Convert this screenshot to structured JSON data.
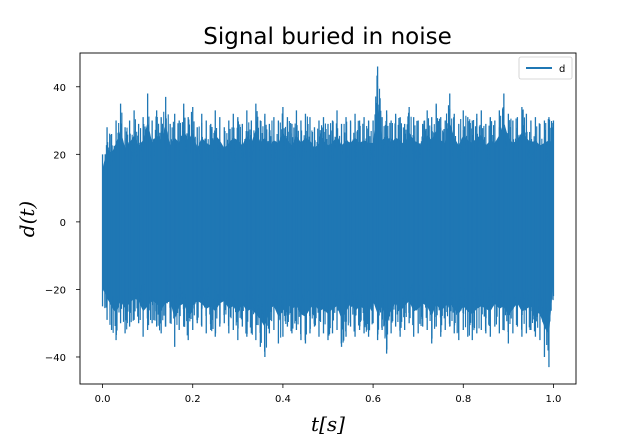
{
  "chart_data": {
    "type": "line",
    "title": "Signal buried in noise",
    "xlabel": "t[s]",
    "ylabel": "d(t)",
    "xlim": [
      -0.05,
      1.05
    ],
    "ylim": [
      -48,
      50
    ],
    "x_ticks": [
      0.0,
      0.2,
      0.4,
      0.6,
      0.8,
      1.0
    ],
    "x_tick_labels": [
      "0.0",
      "0.2",
      "0.4",
      "0.6",
      "0.8",
      "1.0"
    ],
    "y_ticks": [
      -40,
      -20,
      0,
      20,
      40
    ],
    "y_tick_labels": [
      "−40",
      "−20",
      "0",
      "20",
      "40"
    ],
    "grid": false,
    "legend": {
      "position": "top-right",
      "entries": [
        "d"
      ]
    },
    "series": [
      {
        "name": "d",
        "color": "#1f77b4",
        "description_stats": {
          "x_start": 0.0,
          "x_end": 1.0,
          "approx_min": -43,
          "approx_max": 46,
          "typical_range": [
            -30,
            30
          ]
        },
        "x": [
          0.0,
          0.01,
          0.02,
          0.03,
          0.04,
          0.05,
          0.06,
          0.07,
          0.08,
          0.09,
          0.1,
          0.11,
          0.12,
          0.13,
          0.14,
          0.15,
          0.16,
          0.17,
          0.18,
          0.19,
          0.2,
          0.21,
          0.22,
          0.23,
          0.24,
          0.25,
          0.26,
          0.27,
          0.28,
          0.29,
          0.3,
          0.31,
          0.32,
          0.33,
          0.34,
          0.35,
          0.36,
          0.37,
          0.38,
          0.39,
          0.4,
          0.41,
          0.42,
          0.43,
          0.44,
          0.45,
          0.46,
          0.47,
          0.48,
          0.49,
          0.5,
          0.51,
          0.52,
          0.53,
          0.54,
          0.55,
          0.56,
          0.57,
          0.58,
          0.59,
          0.6,
          0.61,
          0.62,
          0.63,
          0.64,
          0.65,
          0.66,
          0.67,
          0.68,
          0.69,
          0.7,
          0.71,
          0.72,
          0.73,
          0.74,
          0.75,
          0.76,
          0.77,
          0.78,
          0.79,
          0.8,
          0.81,
          0.82,
          0.83,
          0.84,
          0.85,
          0.86,
          0.87,
          0.88,
          0.89,
          0.9,
          0.91,
          0.92,
          0.93,
          0.94,
          0.95,
          0.96,
          0.97,
          0.98,
          0.99,
          1.0
        ],
        "upper": [
          20,
          28,
          26,
          30,
          35,
          28,
          30,
          33,
          29,
          31,
          38,
          30,
          33,
          31,
          37,
          29,
          32,
          30,
          35,
          31,
          34,
          28,
          32,
          30,
          29,
          33,
          31,
          28,
          30,
          32,
          31,
          29,
          33,
          30,
          35,
          30,
          32,
          29,
          31,
          30,
          34,
          31,
          29,
          33,
          30,
          32,
          31,
          28,
          30,
          31,
          29,
          30,
          33,
          29,
          31,
          30,
          32,
          30,
          31,
          30,
          30,
          46,
          31,
          33,
          30,
          32,
          31,
          29,
          34,
          31,
          30,
          29,
          33,
          31,
          35,
          31,
          30,
          38,
          32,
          29,
          33,
          31,
          30,
          32,
          33,
          29,
          31,
          30,
          33,
          38,
          32,
          30,
          31,
          34,
          32,
          30,
          31,
          29,
          30,
          31,
          30
        ],
        "lower": [
          -25,
          -29,
          -32,
          -35,
          -30,
          -33,
          -31,
          -29,
          -30,
          -34,
          -32,
          -30,
          -31,
          -33,
          -31,
          -30,
          -37,
          -32,
          -31,
          -35,
          -32,
          -30,
          -31,
          -33,
          -32,
          -34,
          -31,
          -30,
          -33,
          -32,
          -35,
          -31,
          -34,
          -33,
          -35,
          -37,
          -40,
          -33,
          -32,
          -36,
          -34,
          -31,
          -33,
          -32,
          -35,
          -36,
          -33,
          -31,
          -34,
          -33,
          -35,
          -33,
          -32,
          -37,
          -34,
          -31,
          -34,
          -32,
          -33,
          -34,
          -30,
          -35,
          -32,
          -39,
          -33,
          -31,
          -34,
          -32,
          -30,
          -34,
          -33,
          -31,
          -32,
          -36,
          -31,
          -34,
          -32,
          -31,
          -33,
          -35,
          -32,
          -34,
          -35,
          -33,
          -32,
          -33,
          -34,
          -31,
          -33,
          -32,
          -36,
          -33,
          -31,
          -34,
          -33,
          -32,
          -34,
          -35,
          -40,
          -43,
          -22
        ]
      }
    ]
  }
}
